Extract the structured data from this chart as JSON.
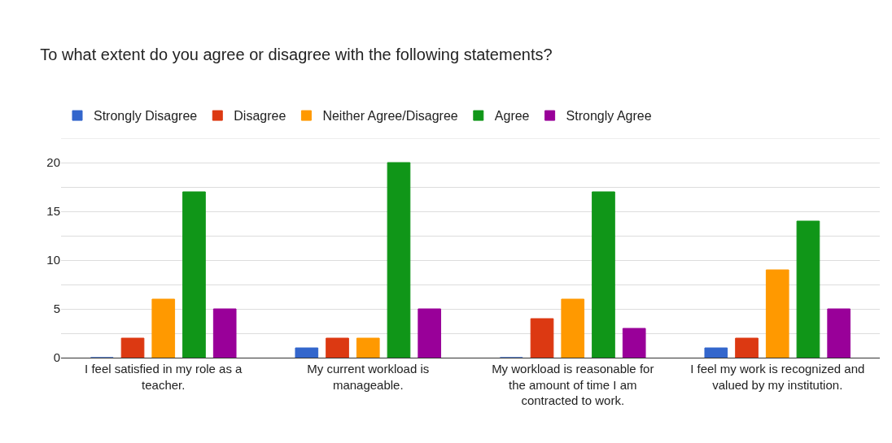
{
  "chart_data": {
    "type": "bar",
    "title": "To what extent do you agree or disagree with the following statements?",
    "categories": [
      "I feel satisfied in my role as a teacher.",
      "My current workload is manageable.",
      "My workload is reasonable for the amount of time I am contracted to work.",
      "I feel my work is recognized and valued by my institution."
    ],
    "series": [
      {
        "name": "Strongly Disagree",
        "color": "#3366cc",
        "values": [
          0,
          1,
          0,
          1
        ]
      },
      {
        "name": "Disagree",
        "color": "#dc3912",
        "values": [
          2,
          2,
          4,
          2
        ]
      },
      {
        "name": "Neither Agree/Disagree",
        "color": "#ff9900",
        "values": [
          6,
          2,
          6,
          9
        ]
      },
      {
        "name": "Agree",
        "color": "#109618",
        "values": [
          17,
          20,
          17,
          14
        ]
      },
      {
        "name": "Strongly Agree",
        "color": "#990099",
        "values": [
          5,
          5,
          3,
          5
        ]
      }
    ],
    "ylim": [
      0,
      22.5
    ],
    "yticks": [
      0,
      {
        "value": 2.5,
        "label": null
      },
      5,
      {
        "value": 7.5,
        "label": null
      },
      10,
      {
        "value": 12.5,
        "label": null
      },
      15,
      {
        "value": 17.5,
        "label": null
      },
      20,
      {
        "value": 22.5,
        "label": null
      }
    ],
    "grid": "y",
    "legend": "top"
  }
}
